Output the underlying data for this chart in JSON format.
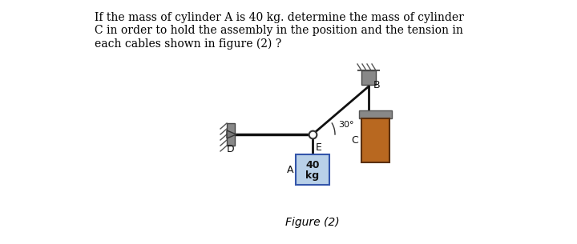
{
  "bg_color": "#ffffff",
  "text_color": "#000000",
  "question_text": "If the mass of cylinder A is 40 kg. determine the mass of cylinder\nC in order to hold the assembly in the position and the tension in\neach cables shown in figure (2) ?",
  "figure_label": "Figure (2)",
  "cyl_A_color": "#b8d0e8",
  "cyl_A_border": "#3355aa",
  "cyl_C_color": "#b86820",
  "cyl_C_border": "#5a3010",
  "rope_color": "#111111",
  "wall_color": "#666666",
  "angle_label": "30°",
  "D_label": "D",
  "E_label": "E",
  "B_label": "B",
  "C_label": "C",
  "A_label": "A"
}
